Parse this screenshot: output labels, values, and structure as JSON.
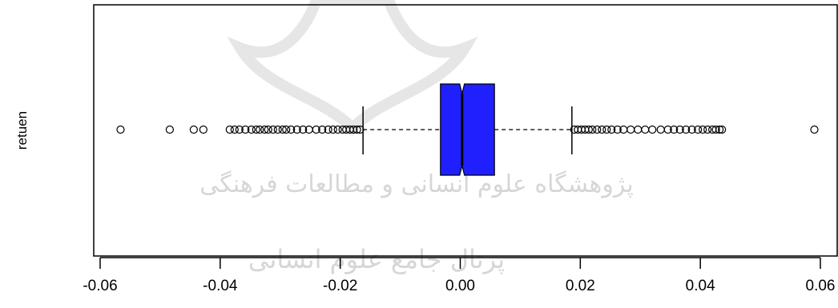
{
  "chart_data": {
    "type": "boxplot",
    "orientation": "horizontal",
    "notched": true,
    "ylabel": "retuen",
    "xlabel": "",
    "xlim": [
      -0.062,
      0.062
    ],
    "x_ticks": [
      -0.06,
      -0.04,
      -0.02,
      0.0,
      0.02,
      0.04,
      0.06
    ],
    "x_tick_labels": [
      "-0.06",
      "-0.04",
      "-0.02",
      "0.00",
      "0.02",
      "0.04",
      "0.06"
    ],
    "box_color": "#2020ff",
    "box": {
      "q1": -0.0033,
      "median": 0.0003,
      "q3": 0.0057,
      "notch_low": -0.0001,
      "notch_high": 0.0007,
      "whisker_low": -0.0162,
      "whisker_high": 0.0186
    },
    "outliers_low": [
      -0.0566,
      -0.0484,
      -0.0444,
      -0.0428,
      -0.0384,
      -0.0376,
      -0.0368,
      -0.0358,
      -0.0348,
      -0.034,
      -0.0334,
      -0.0326,
      -0.032,
      -0.0312,
      -0.0304,
      -0.0296,
      -0.029,
      -0.0282,
      -0.0272,
      -0.0262,
      -0.0252,
      -0.024,
      -0.023,
      -0.022,
      -0.0212,
      -0.0204,
      -0.0196,
      -0.019,
      -0.0184,
      -0.0178,
      -0.0172,
      -0.0167
    ],
    "outliers_high": [
      0.019,
      0.0196,
      0.0202,
      0.0208,
      0.0214,
      0.022,
      0.0228,
      0.0236,
      0.0244,
      0.0252,
      0.0262,
      0.0272,
      0.0284,
      0.0296,
      0.0308,
      0.032,
      0.0334,
      0.0346,
      0.0356,
      0.0366,
      0.0376,
      0.0386,
      0.0396,
      0.0404,
      0.0412,
      0.042,
      0.0426,
      0.0432,
      0.0436,
      0.059
    ]
  },
  "watermark": {
    "line1": "پژوهشگاه علوم انسانی و مطالعات فرهنگی",
    "line2": "پرتال جامع علوم انسانی"
  }
}
